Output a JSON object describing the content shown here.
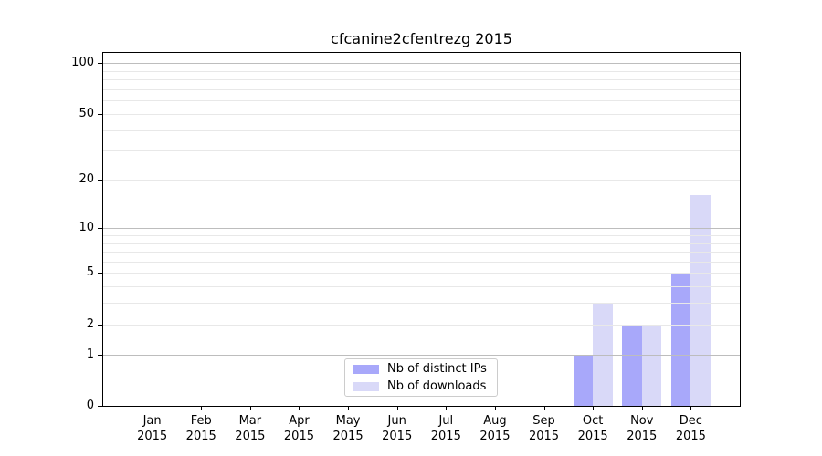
{
  "chart_data": {
    "type": "bar",
    "title": "cfcanine2cfentrezg 2015",
    "categories": [
      "Jan",
      "Feb",
      "Mar",
      "Apr",
      "May",
      "Jun",
      "Jul",
      "Aug",
      "Sep",
      "Oct",
      "Nov",
      "Dec"
    ],
    "category_year": "2015",
    "series": [
      {
        "name": "Nb of distinct IPs",
        "color": "#a8a8fa",
        "values": [
          0,
          0,
          0,
          0,
          0,
          0,
          0,
          0,
          0,
          1,
          2,
          5
        ]
      },
      {
        "name": "Nb of downloads",
        "color": "#d9d9f8",
        "values": [
          0,
          0,
          0,
          0,
          0,
          0,
          0,
          0,
          0,
          3,
          2,
          16
        ]
      }
    ],
    "xlabel": "",
    "ylabel": "",
    "yscale": "log1p",
    "ylim": [
      0,
      115
    ],
    "yticks": [
      0,
      1,
      2,
      5,
      10,
      20,
      50,
      100
    ],
    "grid_major": [
      1,
      10,
      100
    ],
    "grid_minor": [
      2,
      3,
      4,
      5,
      6,
      7,
      8,
      9,
      20,
      30,
      40,
      50,
      60,
      70,
      80,
      90
    ],
    "grid": true,
    "legend_position": "lower center",
    "bar_width_fraction": 0.4,
    "colors": {
      "grid_major": "#bdbdbd",
      "grid_minor": "#e8e8e8",
      "spine": "#000000",
      "text": "#000000",
      "background": "#ffffff"
    }
  }
}
